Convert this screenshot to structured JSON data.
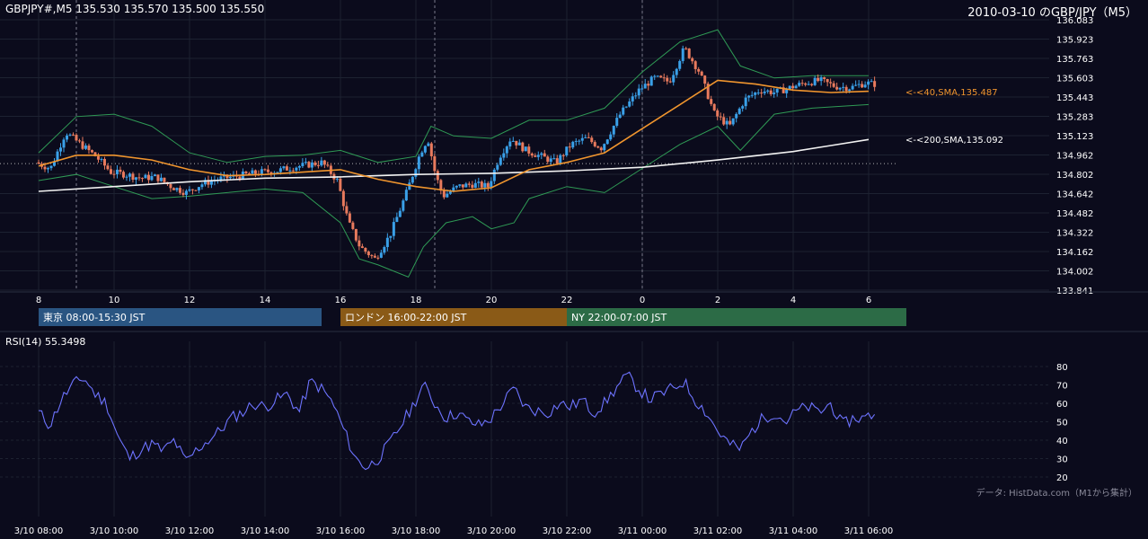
{
  "header": {
    "symbol_line": "GBPJPY#,M5 135.530 135.570 135.500 135.550",
    "title": "2010-03-10 のGBP/JPY（M5）"
  },
  "colors": {
    "background": "#0b0b1c",
    "grid": "#1d2231",
    "up_candle": "#3aa0e8",
    "down_candle": "#e87a5d",
    "sma40": "#f0952e",
    "sma200": "#f2f2f2",
    "bollinger": "#2f9a55",
    "rsi": "#6d73ff",
    "tokyo": "#2a5582",
    "london": "#8a5a17",
    "ny": "#2c6b46"
  },
  "sessions": [
    {
      "label": "東京 08:00-15:30 JST",
      "color": "#2a5582"
    },
    {
      "label": "ロンドン 16:00-22:00 JST",
      "color": "#8a5a17"
    },
    {
      "label": "NY 22:00-07:00 JST",
      "color": "#2c6b46"
    }
  ],
  "chart_data": [
    {
      "type": "candlestick",
      "title": "2010-03-10 のGBP/JPY（M5）",
      "symbol": "GBPJPY#,M5 135.530 135.570 135.500 135.550",
      "ylim": [
        133.841,
        136.083
      ],
      "y_ticks": [
        "136.083",
        "135.923",
        "135.763",
        "135.603",
        "135.443",
        "135.283",
        "135.123",
        "134.962",
        "134.802",
        "134.642",
        "134.482",
        "134.322",
        "134.162",
        "134.002",
        "133.841"
      ],
      "x_ticks": [
        "8",
        "10",
        "12",
        "14",
        "16",
        "18",
        "20",
        "22",
        "0",
        "2",
        "4",
        "6"
      ],
      "series": [
        {
          "name": "<-<40,SMA,135.487",
          "kind": "SMA40",
          "last": 135.487
        },
        {
          "name": "<-<200,SMA,135.092",
          "kind": "SMA200",
          "last": 135.092
        }
      ],
      "dotted_level": 134.89,
      "close_path": [
        [
          8.0,
          134.9
        ],
        [
          8.4,
          134.85
        ],
        [
          8.8,
          135.15
        ],
        [
          9.2,
          135.05
        ],
        [
          9.6,
          134.95
        ],
        [
          10.0,
          134.82
        ],
        [
          10.4,
          134.8
        ],
        [
          10.8,
          134.77
        ],
        [
          11.2,
          134.78
        ],
        [
          11.6,
          134.7
        ],
        [
          12.0,
          134.65
        ],
        [
          12.4,
          134.72
        ],
        [
          12.8,
          134.76
        ],
        [
          13.2,
          134.78
        ],
        [
          13.6,
          134.8
        ],
        [
          14.0,
          134.82
        ],
        [
          14.4,
          134.83
        ],
        [
          14.8,
          134.86
        ],
        [
          15.2,
          134.88
        ],
        [
          15.6,
          134.9
        ],
        [
          16.0,
          134.75
        ],
        [
          16.3,
          134.4
        ],
        [
          16.6,
          134.2
        ],
        [
          17.0,
          134.1
        ],
        [
          17.4,
          134.3
        ],
        [
          17.8,
          134.62
        ],
        [
          18.2,
          134.98
        ],
        [
          18.4,
          135.1
        ],
        [
          18.6,
          134.8
        ],
        [
          18.8,
          134.62
        ],
        [
          19.2,
          134.7
        ],
        [
          19.6,
          134.72
        ],
        [
          20.0,
          134.7
        ],
        [
          20.3,
          134.95
        ],
        [
          20.6,
          135.1
        ],
        [
          21.0,
          135.0
        ],
        [
          21.4,
          134.95
        ],
        [
          21.8,
          134.9
        ],
        [
          22.2,
          135.05
        ],
        [
          22.6,
          135.1
        ],
        [
          23.0,
          135.02
        ],
        [
          23.5,
          135.3
        ],
        [
          24.0,
          135.5
        ],
        [
          24.4,
          135.6
        ],
        [
          24.8,
          135.57
        ],
        [
          25.2,
          135.85
        ],
        [
          25.6,
          135.65
        ],
        [
          26.0,
          135.3
        ],
        [
          26.4,
          135.2
        ],
        [
          26.8,
          135.42
        ],
        [
          27.2,
          135.5
        ],
        [
          27.6,
          135.48
        ],
        [
          28.0,
          135.52
        ],
        [
          28.4,
          135.56
        ],
        [
          28.8,
          135.58
        ],
        [
          29.2,
          135.53
        ],
        [
          29.6,
          135.52
        ],
        [
          30.0,
          135.56
        ],
        [
          30.2,
          135.55
        ]
      ],
      "sma40_path": [
        [
          8.0,
          134.87
        ],
        [
          9.0,
          134.96
        ],
        [
          10.0,
          134.96
        ],
        [
          11.0,
          134.92
        ],
        [
          12.0,
          134.84
        ],
        [
          13.0,
          134.79
        ],
        [
          14.0,
          134.8
        ],
        [
          15.0,
          134.82
        ],
        [
          16.0,
          134.84
        ],
        [
          17.0,
          134.76
        ],
        [
          18.0,
          134.7
        ],
        [
          19.0,
          134.66
        ],
        [
          20.0,
          134.69
        ],
        [
          21.0,
          134.84
        ],
        [
          22.0,
          134.9
        ],
        [
          23.0,
          134.98
        ],
        [
          24.0,
          135.18
        ],
        [
          25.0,
          135.38
        ],
        [
          26.0,
          135.58
        ],
        [
          27.0,
          135.55
        ],
        [
          28.0,
          135.5
        ],
        [
          29.0,
          135.48
        ],
        [
          30.0,
          135.49
        ]
      ],
      "sma200_path": [
        [
          8.0,
          134.66
        ],
        [
          10.0,
          134.7
        ],
        [
          12.0,
          134.74
        ],
        [
          14.0,
          134.77
        ],
        [
          16.0,
          134.78
        ],
        [
          18.0,
          134.8
        ],
        [
          20.0,
          134.81
        ],
        [
          22.0,
          134.83
        ],
        [
          24.0,
          134.86
        ],
        [
          26.0,
          134.92
        ],
        [
          28.0,
          134.99
        ],
        [
          29.0,
          135.04
        ],
        [
          30.0,
          135.09
        ]
      ],
      "bb_upper_path": [
        [
          8.0,
          134.98
        ],
        [
          9.0,
          135.28
        ],
        [
          10.0,
          135.3
        ],
        [
          11.0,
          135.2
        ],
        [
          12.0,
          134.98
        ],
        [
          13.0,
          134.9
        ],
        [
          14.0,
          134.95
        ],
        [
          15.0,
          134.96
        ],
        [
          16.0,
          135.0
        ],
        [
          17.0,
          134.9
        ],
        [
          18.0,
          134.95
        ],
        [
          18.4,
          135.2
        ],
        [
          19.0,
          135.12
        ],
        [
          20.0,
          135.1
        ],
        [
          21.0,
          135.25
        ],
        [
          22.0,
          135.25
        ],
        [
          23.0,
          135.35
        ],
        [
          24.0,
          135.65
        ],
        [
          25.0,
          135.9
        ],
        [
          26.0,
          136.0
        ],
        [
          26.6,
          135.7
        ],
        [
          27.5,
          135.6
        ],
        [
          28.5,
          135.62
        ],
        [
          30.0,
          135.62
        ]
      ],
      "bb_lower_path": [
        [
          8.0,
          134.75
        ],
        [
          9.0,
          134.8
        ],
        [
          10.0,
          134.7
        ],
        [
          11.0,
          134.6
        ],
        [
          12.0,
          134.62
        ],
        [
          13.0,
          134.65
        ],
        [
          14.0,
          134.68
        ],
        [
          15.0,
          134.65
        ],
        [
          16.0,
          134.4
        ],
        [
          16.5,
          134.1
        ],
        [
          17.0,
          134.05
        ],
        [
          17.8,
          133.95
        ],
        [
          18.2,
          134.2
        ],
        [
          18.8,
          134.4
        ],
        [
          19.5,
          134.45
        ],
        [
          20.0,
          134.35
        ],
        [
          20.6,
          134.4
        ],
        [
          21.0,
          134.6
        ],
        [
          22.0,
          134.7
        ],
        [
          23.0,
          134.65
        ],
        [
          24.0,
          134.85
        ],
        [
          25.0,
          135.05
        ],
        [
          26.0,
          135.2
        ],
        [
          26.6,
          135.0
        ],
        [
          27.5,
          135.3
        ],
        [
          28.5,
          135.35
        ],
        [
          30.0,
          135.38
        ]
      ]
    },
    {
      "type": "line",
      "title": "RSI(14) 55.3498",
      "ylim": [
        20,
        80
      ],
      "y_ticks": [
        "80",
        "70",
        "60",
        "50",
        "40",
        "30",
        "20"
      ],
      "x_ticks": [
        "3/10 08:00",
        "3/10 10:00",
        "3/10 12:00",
        "3/10 14:00",
        "3/10 16:00",
        "3/10 18:00",
        "3/10 20:00",
        "3/10 22:00",
        "3/11 00:00",
        "3/11 02:00",
        "3/11 04:00",
        "3/11 06:00"
      ],
      "path": [
        [
          8.0,
          55
        ],
        [
          8.3,
          48
        ],
        [
          8.6,
          62
        ],
        [
          8.9,
          70
        ],
        [
          9.2,
          74
        ],
        [
          9.5,
          65
        ],
        [
          9.8,
          60
        ],
        [
          10.1,
          42
        ],
        [
          10.4,
          30
        ],
        [
          10.7,
          35
        ],
        [
          11.0,
          38
        ],
        [
          11.3,
          34
        ],
        [
          11.6,
          40
        ],
        [
          11.9,
          28
        ],
        [
          12.2,
          35
        ],
        [
          12.5,
          40
        ],
        [
          12.8,
          45
        ],
        [
          13.1,
          52
        ],
        [
          13.4,
          55
        ],
        [
          13.7,
          60
        ],
        [
          14.0,
          58
        ],
        [
          14.3,
          62
        ],
        [
          14.6,
          65
        ],
        [
          14.9,
          55
        ],
        [
          15.2,
          72
        ],
        [
          15.5,
          68
        ],
        [
          15.8,
          60
        ],
        [
          16.1,
          45
        ],
        [
          16.4,
          30
        ],
        [
          16.7,
          25
        ],
        [
          17.0,
          30
        ],
        [
          17.3,
          38
        ],
        [
          17.6,
          48
        ],
        [
          17.9,
          58
        ],
        [
          18.2,
          70
        ],
        [
          18.5,
          60
        ],
        [
          18.8,
          52
        ],
        [
          19.1,
          55
        ],
        [
          19.4,
          50
        ],
        [
          19.7,
          48
        ],
        [
          20.0,
          52
        ],
        [
          20.3,
          60
        ],
        [
          20.6,
          68
        ],
        [
          20.9,
          58
        ],
        [
          21.2,
          56
        ],
        [
          21.5,
          55
        ],
        [
          21.8,
          60
        ],
        [
          22.1,
          58
        ],
        [
          22.4,
          62
        ],
        [
          22.7,
          55
        ],
        [
          23.0,
          60
        ],
        [
          23.3,
          68
        ],
        [
          23.6,
          75
        ],
        [
          23.9,
          68
        ],
        [
          24.2,
          62
        ],
        [
          24.5,
          65
        ],
        [
          24.8,
          68
        ],
        [
          25.1,
          72
        ],
        [
          25.4,
          62
        ],
        [
          25.7,
          55
        ],
        [
          26.0,
          45
        ],
        [
          26.3,
          38
        ],
        [
          26.6,
          35
        ],
        [
          26.9,
          45
        ],
        [
          27.2,
          52
        ],
        [
          27.5,
          55
        ],
        [
          27.8,
          50
        ],
        [
          28.1,
          56
        ],
        [
          28.4,
          58
        ],
        [
          28.7,
          55
        ],
        [
          29.0,
          60
        ],
        [
          29.3,
          48
        ],
        [
          29.6,
          52
        ],
        [
          29.9,
          52
        ],
        [
          30.2,
          55
        ]
      ]
    }
  ],
  "footer": {
    "source": "データ: HistData.com（M1から集計）"
  }
}
